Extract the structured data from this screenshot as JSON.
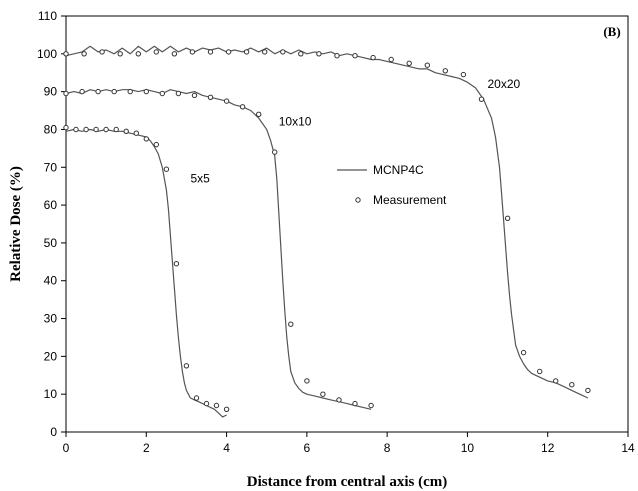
{
  "chart_data": {
    "type": "line",
    "title": "",
    "panel_label": "(B)",
    "xlabel": "Distance from central axis (cm)",
    "ylabel": "Relative Dose (%)",
    "xlim": [
      0,
      14
    ],
    "ylim": [
      0,
      110
    ],
    "x_ticks": [
      0,
      2,
      4,
      6,
      8,
      10,
      12,
      14
    ],
    "y_ticks": [
      0,
      10,
      20,
      30,
      40,
      50,
      60,
      70,
      80,
      90,
      100,
      110
    ],
    "grid": false,
    "legend": {
      "position": "center-right",
      "entries": [
        {
          "label": "MCNP4C",
          "marker": "line",
          "color": "#555555"
        },
        {
          "label": "Measurement",
          "marker": "open-circle",
          "color": "#333333"
        }
      ]
    },
    "annotations": [
      {
        "text": "5x5",
        "x": 3.1,
        "y": 66
      },
      {
        "text": "10x10",
        "x": 5.3,
        "y": 81
      },
      {
        "text": "20x20",
        "x": 10.5,
        "y": 91
      }
    ],
    "series": [
      {
        "name": "MCNP4C",
        "field": "5x5",
        "style": "line",
        "color": "#555555",
        "x": [
          0.0,
          0.2,
          0.4,
          0.6,
          0.8,
          1.0,
          1.2,
          1.4,
          1.6,
          1.8,
          2.0,
          2.1,
          2.2,
          2.3,
          2.4,
          2.5,
          2.55,
          2.6,
          2.65,
          2.7,
          2.75,
          2.8,
          2.85,
          2.9,
          2.95,
          3.0,
          3.1,
          3.2,
          3.3,
          3.4,
          3.5,
          3.6,
          3.7,
          3.8,
          3.9,
          4.0
        ],
        "y": [
          79.5,
          80.0,
          79.5,
          80.0,
          79.5,
          80.0,
          79.5,
          79.5,
          79.0,
          78.5,
          78.0,
          77.0,
          75.5,
          73.5,
          70.0,
          64.0,
          59.0,
          52.0,
          45.0,
          38.0,
          31.0,
          25.0,
          20.0,
          16.0,
          13.0,
          11.0,
          9.0,
          8.5,
          8.0,
          7.5,
          7.0,
          6.5,
          6.0,
          5.0,
          4.0,
          4.5
        ]
      },
      {
        "name": "Measurement",
        "field": "5x5",
        "style": "marker",
        "color": "#333333",
        "x": [
          0.0,
          0.25,
          0.5,
          0.75,
          1.0,
          1.25,
          1.5,
          1.75,
          2.0,
          2.25,
          2.5,
          2.75,
          3.0,
          3.25,
          3.5,
          3.75,
          4.0
        ],
        "y": [
          80.5,
          80.0,
          80.0,
          80.0,
          80.0,
          80.0,
          79.5,
          79.0,
          77.5,
          76.0,
          69.5,
          44.5,
          17.5,
          9.0,
          7.5,
          7.0,
          6.0
        ]
      },
      {
        "name": "MCNP4C",
        "field": "10x10",
        "style": "line",
        "color": "#555555",
        "x": [
          0.0,
          0.2,
          0.4,
          0.6,
          0.8,
          1.0,
          1.2,
          1.4,
          1.6,
          1.8,
          2.0,
          2.2,
          2.4,
          2.6,
          2.8,
          3.0,
          3.2,
          3.4,
          3.6,
          3.8,
          4.0,
          4.2,
          4.4,
          4.6,
          4.8,
          5.0,
          5.1,
          5.2,
          5.25,
          5.3,
          5.35,
          5.4,
          5.45,
          5.5,
          5.55,
          5.6,
          5.7,
          5.8,
          5.9,
          6.0,
          6.2,
          6.4,
          6.6,
          6.8,
          7.0,
          7.2,
          7.4,
          7.6
        ],
        "y": [
          89.5,
          90.0,
          89.5,
          90.5,
          90.0,
          90.5,
          90.0,
          90.5,
          90.5,
          90.0,
          90.5,
          90.0,
          89.5,
          90.5,
          90.0,
          89.5,
          90.0,
          89.0,
          88.5,
          88.0,
          87.5,
          86.5,
          86.0,
          85.0,
          83.0,
          80.0,
          77.0,
          73.0,
          67.0,
          58.0,
          49.0,
          40.0,
          32.0,
          25.0,
          20.0,
          16.0,
          13.0,
          11.5,
          10.5,
          10.0,
          9.5,
          9.0,
          8.5,
          8.0,
          7.5,
          7.0,
          6.5,
          6.0
        ]
      },
      {
        "name": "Measurement",
        "field": "10x10",
        "style": "marker",
        "color": "#333333",
        "x": [
          0.0,
          0.4,
          0.8,
          1.2,
          1.6,
          2.0,
          2.4,
          2.8,
          3.2,
          3.6,
          4.0,
          4.4,
          4.8,
          5.2,
          5.6,
          6.0,
          6.4,
          6.8,
          7.2,
          7.6
        ],
        "y": [
          89.5,
          90.0,
          90.0,
          90.0,
          90.0,
          90.0,
          89.5,
          89.5,
          89.0,
          88.5,
          87.5,
          86.0,
          84.0,
          74.0,
          28.5,
          13.5,
          10.0,
          8.5,
          7.5,
          7.0
        ]
      },
      {
        "name": "MCNP4C",
        "field": "20x20",
        "style": "line",
        "color": "#555555",
        "x": [
          0.0,
          0.2,
          0.4,
          0.6,
          0.8,
          1.0,
          1.2,
          1.4,
          1.6,
          1.8,
          2.0,
          2.2,
          2.4,
          2.6,
          2.8,
          3.0,
          3.2,
          3.4,
          3.6,
          3.8,
          4.0,
          4.2,
          4.4,
          4.6,
          4.8,
          5.0,
          5.2,
          5.4,
          5.6,
          5.8,
          6.0,
          6.2,
          6.4,
          6.6,
          6.8,
          7.0,
          7.2,
          7.4,
          7.6,
          7.8,
          8.0,
          8.2,
          8.4,
          8.6,
          8.8,
          9.0,
          9.2,
          9.4,
          9.6,
          9.8,
          10.0,
          10.2,
          10.4,
          10.6,
          10.7,
          10.8,
          10.85,
          10.9,
          10.95,
          11.0,
          11.05,
          11.1,
          11.15,
          11.2,
          11.3,
          11.4,
          11.5,
          11.6,
          11.8,
          12.0,
          12.2,
          12.4,
          12.6,
          12.8,
          13.0
        ],
        "y": [
          99.5,
          100.0,
          100.5,
          102.0,
          100.5,
          101.0,
          100.0,
          101.5,
          100.0,
          102.0,
          100.5,
          102.0,
          100.5,
          102.0,
          100.5,
          101.5,
          100.5,
          101.5,
          101.0,
          101.5,
          100.5,
          101.0,
          100.5,
          101.5,
          100.5,
          101.5,
          100.0,
          101.0,
          100.0,
          101.0,
          100.0,
          100.5,
          100.0,
          100.5,
          99.5,
          100.0,
          99.5,
          99.0,
          98.5,
          98.5,
          98.0,
          97.5,
          97.0,
          96.5,
          96.0,
          96.0,
          95.0,
          94.5,
          94.0,
          93.5,
          92.5,
          91.0,
          88.0,
          83.0,
          78.0,
          70.0,
          63.0,
          56.0,
          49.0,
          42.0,
          36.0,
          31.0,
          27.0,
          23.0,
          20.0,
          18.0,
          16.5,
          15.5,
          14.5,
          13.5,
          13.0,
          12.0,
          11.0,
          10.0,
          9.0
        ]
      },
      {
        "name": "Measurement",
        "field": "20x20",
        "style": "marker",
        "color": "#333333",
        "x": [
          0.0,
          0.45,
          0.9,
          1.35,
          1.8,
          2.25,
          2.7,
          3.15,
          3.6,
          4.05,
          4.5,
          4.95,
          5.4,
          5.85,
          6.3,
          6.75,
          7.2,
          7.65,
          8.1,
          8.55,
          9.0,
          9.45,
          9.9,
          10.35,
          11.0,
          11.4,
          11.8,
          12.2,
          12.6,
          13.0
        ],
        "y": [
          100.0,
          100.0,
          100.5,
          100.0,
          100.0,
          100.5,
          100.0,
          100.5,
          100.5,
          100.5,
          100.5,
          100.5,
          100.5,
          100.0,
          100.0,
          99.5,
          99.5,
          99.0,
          98.5,
          97.5,
          97.0,
          95.5,
          94.5,
          88.0,
          56.5,
          21.0,
          16.0,
          13.5,
          12.5,
          11.0
        ]
      }
    ]
  }
}
